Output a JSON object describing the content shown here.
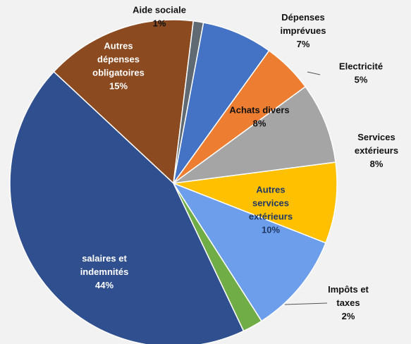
{
  "chart_data": {
    "type": "pie",
    "title": "",
    "slices": [
      {
        "label_lines": [
          "Autres",
          "dépenses",
          "obligatoires"
        ],
        "percent_text": "15%",
        "value": 15,
        "color": "#8b4a1f",
        "label_color": "#ffffff"
      },
      {
        "label_lines": [
          "Aide sociale"
        ],
        "percent_text": "1%",
        "value": 1,
        "color": "#5f6a72",
        "label_color": "#111111"
      },
      {
        "label_lines": [
          "Dépenses",
          "imprévues"
        ],
        "percent_text": "7%",
        "value": 7,
        "color": "#4472c4",
        "label_color": "#111111"
      },
      {
        "label_lines": [
          "Electricité"
        ],
        "percent_text": "5%",
        "value": 5,
        "color": "#ed7d31",
        "label_color": "#111111"
      },
      {
        "label_lines": [
          "Achats divers"
        ],
        "percent_text": "8%",
        "value": 8,
        "color": "#a5a5a5",
        "label_color": "#111111"
      },
      {
        "label_lines": [
          "Services",
          "extérieurs"
        ],
        "percent_text": "8%",
        "value": 8,
        "color": "#ffc000",
        "label_color": "#111111"
      },
      {
        "label_lines": [
          "Autres",
          "services",
          "extérieurs"
        ],
        "percent_text": "10%",
        "value": 10,
        "color": "#6d9eeb",
        "label_color": "#1f3864"
      },
      {
        "label_lines": [
          "Impôts et",
          "taxes"
        ],
        "percent_text": "2%",
        "value": 2,
        "color": "#70ad47",
        "label_color": "#111111"
      },
      {
        "label_lines": [
          "salaires et",
          "indemnités"
        ],
        "percent_text": "44%",
        "value": 44,
        "color": "#2f4f8f",
        "label_color": "#ffffff"
      }
    ]
  }
}
